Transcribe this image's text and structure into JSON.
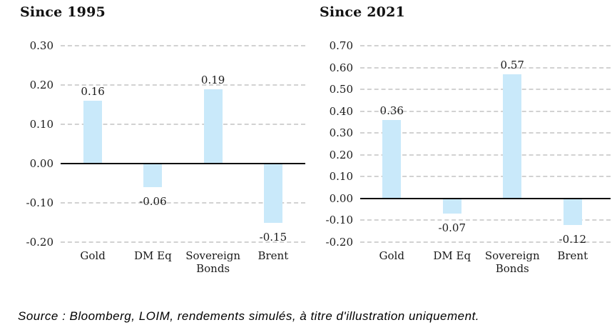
{
  "page": {
    "background": "#ffffff"
  },
  "colors": {
    "bar_fill": "#c9e9fa",
    "gridline": "#d2d2d2",
    "zero_line": "#0a0a0a",
    "text": "#1a1a1a"
  },
  "source_note": "Source : Bloomberg, LOIM, rendements simulés, à titre d'illustration uniquement.",
  "chart_data": [
    {
      "type": "bar",
      "title": "Since 1995",
      "categories": [
        "Gold",
        "DM Eq",
        "Sovereign Bonds",
        "Brent"
      ],
      "values": [
        0.16,
        -0.06,
        0.19,
        -0.15
      ],
      "data_labels": [
        "0.16",
        "-0.06",
        "0.19",
        "-0.15"
      ],
      "ylim": [
        -0.2,
        0.3
      ],
      "ytick_step": 0.1,
      "yticks": [
        "0.30",
        "0.20",
        "0.10",
        "0.00",
        "-0.10",
        "-0.20"
      ],
      "xlabel": "",
      "ylabel": "",
      "grid": "horizontal-dashed",
      "legend": "none"
    },
    {
      "type": "bar",
      "title": "Since 2021",
      "categories": [
        "Gold",
        "DM Eq",
        "Sovereign Bonds",
        "Brent"
      ],
      "values": [
        0.36,
        -0.07,
        0.57,
        -0.12
      ],
      "data_labels": [
        "0.36",
        "-0.07",
        "0.57",
        "-0.12"
      ],
      "ylim": [
        -0.2,
        0.7
      ],
      "ytick_step": 0.1,
      "yticks": [
        "0.70",
        "0.60",
        "0.50",
        "0.40",
        "0.30",
        "0.20",
        "0.10",
        "0.00",
        "-0.10",
        "-0.20"
      ],
      "xlabel": "",
      "ylabel": "",
      "grid": "horizontal-dashed",
      "legend": "none"
    }
  ]
}
